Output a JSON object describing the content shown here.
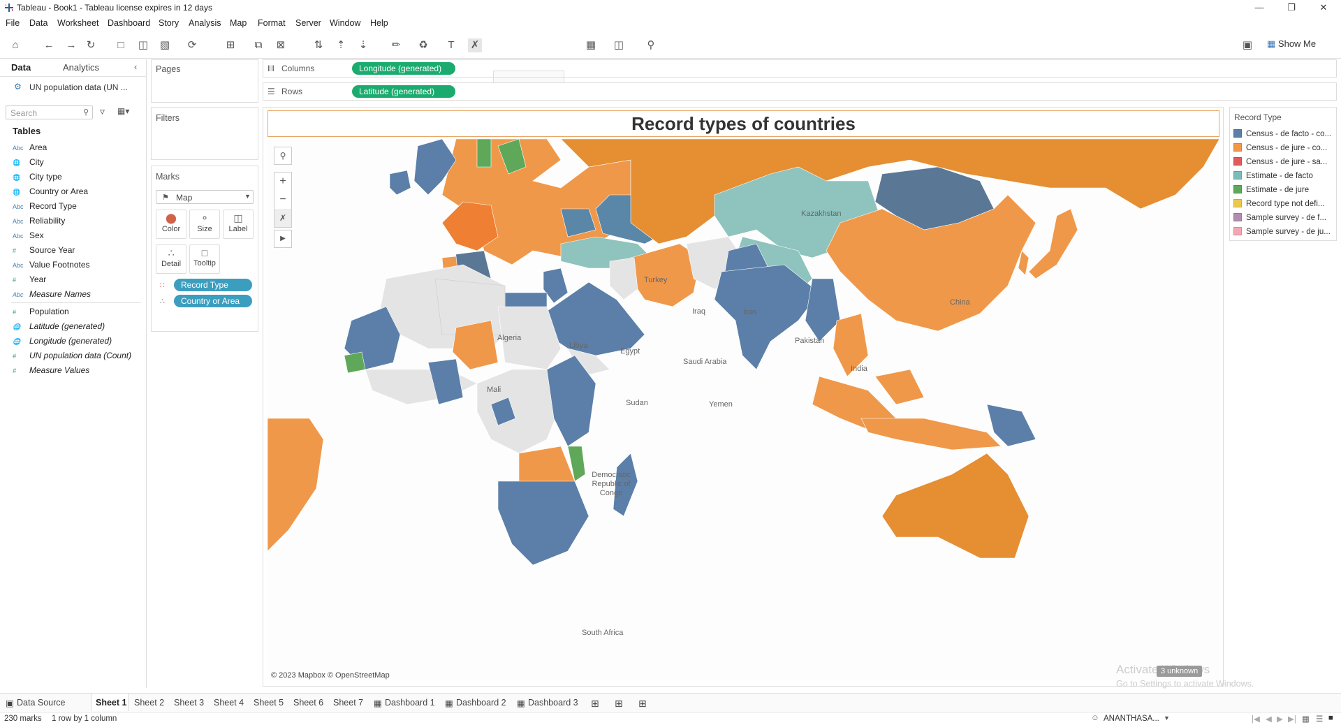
{
  "window": {
    "title": "Tableau - Book1 - Tableau license expires in 12 days"
  },
  "menu": [
    "File",
    "Data",
    "Worksheet",
    "Dashboard",
    "Story",
    "Analysis",
    "Map",
    "Format",
    "Server",
    "Window",
    "Help"
  ],
  "toolbar": {
    "show_me": "Show Me"
  },
  "data_pane": {
    "tab_data": "Data",
    "tab_analytics": "Analytics",
    "datasource": "UN population data (UN ...",
    "search_placeholder": "Search",
    "tables_header": "Tables",
    "fields": [
      {
        "type": "Abc",
        "name": "Area"
      },
      {
        "type": "geo",
        "name": "City"
      },
      {
        "type": "geo",
        "name": "City type"
      },
      {
        "type": "geo",
        "name": "Country or Area"
      },
      {
        "type": "Abc",
        "name": "Record Type"
      },
      {
        "type": "Abc",
        "name": "Reliability"
      },
      {
        "type": "Abc",
        "name": "Sex"
      },
      {
        "type": "#",
        "name": "Source Year"
      },
      {
        "type": "Abc",
        "name": "Value Footnotes"
      },
      {
        "type": "#",
        "name": "Year"
      },
      {
        "type": "Abc",
        "name": "Measure Names"
      },
      {
        "type": "#",
        "name": "Population"
      },
      {
        "type": "geo",
        "name": "Latitude (generated)"
      },
      {
        "type": "geo",
        "name": "Longitude (generated)"
      },
      {
        "type": "#",
        "name": "UN population data (Count)"
      },
      {
        "type": "#",
        "name": "Measure Values"
      }
    ]
  },
  "cards": {
    "pages": "Pages",
    "filters": "Filters",
    "marks": "Marks",
    "mark_type": "Map",
    "buttons": [
      "Color",
      "Size",
      "Label",
      "Detail",
      "Tooltip"
    ],
    "pill_color": "Record Type",
    "pill_detail": "Country or Area"
  },
  "shelves": {
    "columns_label": "Columns",
    "columns_pill": "Longitude (generated)",
    "rows_label": "Rows",
    "rows_pill": "Latitude (generated)"
  },
  "view": {
    "title": "Record types of countries",
    "attribution": "© 2023 Mapbox © OpenStreetMap",
    "unknown_badge": "3 unknown",
    "map_labels": [
      "Kazakhstan",
      "Turkey",
      "Iraq",
      "Iran",
      "China",
      "Algeria",
      "Libya",
      "Egypt",
      "Saudi Arabia",
      "Pakistan",
      "India",
      "Sudan",
      "Yemen",
      "Democratic Republic of Congo",
      "South Africa",
      "Mali"
    ]
  },
  "legend": {
    "title": "Record Type",
    "items": [
      {
        "label": "Census - de facto - co...",
        "color": "#5b7fa8"
      },
      {
        "label": "Census - de jure - co...",
        "color": "#f0984a"
      },
      {
        "label": "Census - de jure - sa...",
        "color": "#e05b5b"
      },
      {
        "label": "Estimate - de facto",
        "color": "#7bbdb6"
      },
      {
        "label": "Estimate - de jure",
        "color": "#5fa85a"
      },
      {
        "label": "Record type not defi...",
        "color": "#ecc94b"
      },
      {
        "label": "Sample survey - de f...",
        "color": "#b58cb0"
      },
      {
        "label": "Sample survey - de ju...",
        "color": "#f2a7b3"
      }
    ]
  },
  "sheet_tabs": [
    "Data Source",
    "Sheet 1",
    "Sheet 2",
    "Sheet 3",
    "Sheet 4",
    "Sheet 5",
    "Sheet 6",
    "Sheet 7",
    "Dashboard 1",
    "Dashboard 2",
    "Dashboard 3"
  ],
  "status": {
    "marks": "230 marks",
    "dims": "1 row by 1 column",
    "user": "ANANTHASA...",
    "activate": "Activate Windows",
    "activate_sub": "Go to Settings to activate Windows."
  }
}
